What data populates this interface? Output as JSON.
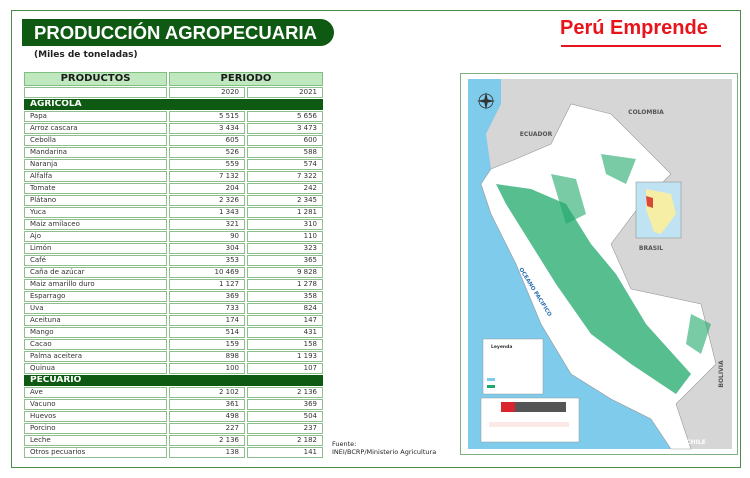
{
  "header": {
    "title": "PRODUCCIÓN AGROPECUARIA",
    "subtitle": "(Miles de toneladas)",
    "brand": "Perú Emprende"
  },
  "table": {
    "col_products": "PRODUCTOS",
    "col_period": "PERIODO",
    "years": [
      "2020",
      "2021"
    ],
    "sections": [
      {
        "name": "AGRICOLA",
        "rows": [
          [
            "Papa",
            "5 515",
            "5 656"
          ],
          [
            "Arroz cascara",
            "3 434",
            "3 473"
          ],
          [
            "Cebolla",
            "605",
            "600"
          ],
          [
            "Mandarina",
            "526",
            "588"
          ],
          [
            "Naranja",
            "559",
            "574"
          ],
          [
            "Alfalfa",
            "7 132",
            "7 322"
          ],
          [
            "Tomate",
            "204",
            "242"
          ],
          [
            "Plátano",
            "2 326",
            "2 345"
          ],
          [
            "Yuca",
            "1 343",
            "1 281"
          ],
          [
            "Maiz amilaceo",
            "321",
            "310"
          ],
          [
            "Ajo",
            "90",
            "110"
          ],
          [
            "Limón",
            "304",
            "323"
          ],
          [
            "Café",
            "353",
            "365"
          ],
          [
            "Caña de azúcar",
            "10 469",
            "9 828"
          ],
          [
            "Maiz amarillo duro",
            "1 127",
            "1 278"
          ],
          [
            "Esparrago",
            "369",
            "358"
          ],
          [
            "Uva",
            "733",
            "824"
          ],
          [
            "Aceituna",
            "174",
            "147"
          ],
          [
            "Mango",
            "514",
            "431"
          ],
          [
            "Cacao",
            "159",
            "158"
          ],
          [
            "Palma aceitera",
            "898",
            "1 193"
          ],
          [
            "Quinua",
            "100",
            "107"
          ]
        ]
      },
      {
        "name": "PECUARIO",
        "rows": [
          [
            "Ave",
            "2 102",
            "2 136"
          ],
          [
            "Vacuno",
            "361",
            "369"
          ],
          [
            "Huevos",
            "498",
            "504"
          ],
          [
            "Porcino",
            "227",
            "237"
          ],
          [
            "Leche",
            "2 136",
            "2 182"
          ],
          [
            "Otros pecuarios",
            "138",
            "141"
          ]
        ]
      }
    ]
  },
  "source": {
    "label": "Fuente:",
    "text": "INEI/BCRP/Ministerio Agricultura"
  },
  "map": {
    "countries": [
      "COLOMBIA",
      "ECUADOR",
      "BRASIL",
      "BOLIVIA",
      "CHILE"
    ],
    "ocean": "OCEANO PACIFICO",
    "legend_title": "Leyenda",
    "colors": {
      "ocean": "#7ecbec",
      "neighbor": "#d6d6d6",
      "peru": "#ffffff",
      "agri": "#1fa86a"
    }
  }
}
